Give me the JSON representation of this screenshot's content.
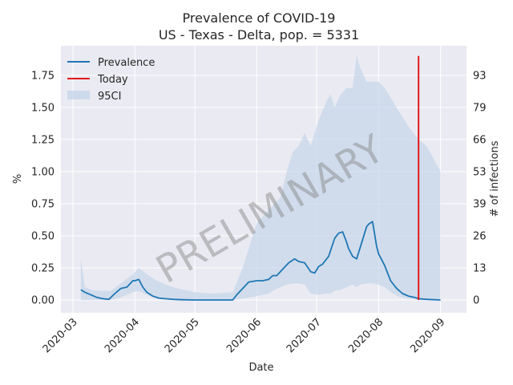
{
  "chart_data": {
    "type": "line",
    "title": "Prevalence of COVID-19",
    "subtitle": "US - Texas - Delta, pop. = 5331",
    "xlabel": "Date",
    "ylabel": "%",
    "y2label": "# of infections",
    "watermark": "PRELIMINARY",
    "xlim": [
      "2020-02-24",
      "2020-09-14"
    ],
    "ylim": [
      -0.1,
      1.98
    ],
    "x_ticks": [
      "2020-03-01",
      "2020-04-01",
      "2020-05-01",
      "2020-06-01",
      "2020-07-01",
      "2020-08-01",
      "2020-09-01"
    ],
    "x_tick_labels": [
      "2020-03",
      "2020-04",
      "2020-05",
      "2020-06",
      "2020-07",
      "2020-08",
      "2020-09"
    ],
    "y_ticks": [
      0.0,
      0.25,
      0.5,
      0.75,
      1.0,
      1.25,
      1.5,
      1.75
    ],
    "y_tick_labels": [
      "0.00",
      "0.25",
      "0.50",
      "0.75",
      "1.00",
      "1.25",
      "1.50",
      "1.75"
    ],
    "y2_ticks": [
      0,
      13,
      26,
      39,
      53,
      66,
      79,
      93
    ],
    "grid": true,
    "legend_position": "top-left",
    "legend": [
      "Prevalence",
      "Today",
      "95CI"
    ],
    "colors": {
      "prevalence": "#1f77b4",
      "today": "#e31a1c",
      "ci": "#c5d6ea",
      "background": "#eaeaf2",
      "grid": "#ffffff"
    },
    "today": "2020-08-21",
    "today_range": [
      0.0,
      1.9
    ],
    "series": [
      {
        "name": "Prevalence",
        "x": [
          "2020-03-05",
          "2020-03-07",
          "2020-03-10",
          "2020-03-13",
          "2020-03-16",
          "2020-03-19",
          "2020-03-22",
          "2020-03-25",
          "2020-03-28",
          "2020-03-31",
          "2020-04-01",
          "2020-04-03",
          "2020-04-05",
          "2020-04-07",
          "2020-04-10",
          "2020-04-13",
          "2020-04-16",
          "2020-04-20",
          "2020-04-25",
          "2020-05-01",
          "2020-05-10",
          "2020-05-20",
          "2020-05-22",
          "2020-05-25",
          "2020-05-28",
          "2020-06-01",
          "2020-06-04",
          "2020-06-07",
          "2020-06-09",
          "2020-06-11",
          "2020-06-14",
          "2020-06-17",
          "2020-06-20",
          "2020-06-22",
          "2020-06-25",
          "2020-06-28",
          "2020-06-30",
          "2020-07-02",
          "2020-07-04",
          "2020-07-07",
          "2020-07-10",
          "2020-07-12",
          "2020-07-14",
          "2020-07-16",
          "2020-07-17",
          "2020-07-19",
          "2020-07-21",
          "2020-07-23",
          "2020-07-25",
          "2020-07-26",
          "2020-07-27",
          "2020-07-29",
          "2020-07-31",
          "2020-08-01",
          "2020-08-02",
          "2020-08-04",
          "2020-08-07",
          "2020-08-10",
          "2020-08-13",
          "2020-08-16",
          "2020-08-19",
          "2020-08-21",
          "2020-08-25",
          "2020-09-01"
        ],
        "values": [
          0.08,
          0.06,
          0.04,
          0.02,
          0.01,
          0.005,
          0.05,
          0.09,
          0.1,
          0.15,
          0.15,
          0.16,
          0.1,
          0.06,
          0.03,
          0.015,
          0.01,
          0.005,
          0.002,
          0.0,
          0.0,
          0.0,
          0.04,
          0.09,
          0.14,
          0.15,
          0.15,
          0.16,
          0.19,
          0.19,
          0.24,
          0.29,
          0.32,
          0.3,
          0.29,
          0.22,
          0.21,
          0.26,
          0.28,
          0.34,
          0.48,
          0.52,
          0.53,
          0.45,
          0.4,
          0.34,
          0.32,
          0.42,
          0.52,
          0.57,
          0.59,
          0.61,
          0.42,
          0.36,
          0.33,
          0.27,
          0.15,
          0.09,
          0.05,
          0.03,
          0.02,
          0.01,
          0.005,
          0.0
        ]
      },
      {
        "name": "95CI",
        "x": [
          "2020-03-05",
          "2020-03-07",
          "2020-03-10",
          "2020-03-15",
          "2020-03-20",
          "2020-03-25",
          "2020-03-31",
          "2020-04-03",
          "2020-04-07",
          "2020-04-12",
          "2020-04-20",
          "2020-05-01",
          "2020-05-10",
          "2020-05-20",
          "2020-05-25",
          "2020-06-01",
          "2020-06-07",
          "2020-06-10",
          "2020-06-13",
          "2020-06-16",
          "2020-06-19",
          "2020-06-22",
          "2020-06-25",
          "2020-06-28",
          "2020-07-02",
          "2020-07-06",
          "2020-07-08",
          "2020-07-10",
          "2020-07-13",
          "2020-07-16",
          "2020-07-19",
          "2020-07-21",
          "2020-07-23",
          "2020-07-26",
          "2020-07-29",
          "2020-08-01",
          "2020-08-04",
          "2020-08-08",
          "2020-08-12",
          "2020-08-16",
          "2020-08-21",
          "2020-08-25",
          "2020-09-01"
        ],
        "upper": [
          0.32,
          0.1,
          0.08,
          0.07,
          0.07,
          0.13,
          0.2,
          0.25,
          0.2,
          0.15,
          0.1,
          0.06,
          0.05,
          0.06,
          0.25,
          0.6,
          0.7,
          0.75,
          0.8,
          1.0,
          1.15,
          1.2,
          1.3,
          1.2,
          1.4,
          1.55,
          1.6,
          1.5,
          1.6,
          1.65,
          1.65,
          1.9,
          1.8,
          1.7,
          1.7,
          1.7,
          1.65,
          1.55,
          1.45,
          1.35,
          1.25,
          1.2,
          1.0
        ],
        "lower": [
          0.0,
          0.0,
          0.0,
          0.0,
          0.0,
          0.02,
          0.06,
          0.07,
          0.04,
          0.01,
          0.0,
          0.0,
          0.0,
          0.0,
          0.01,
          0.03,
          0.05,
          0.08,
          0.1,
          0.12,
          0.13,
          0.13,
          0.12,
          0.05,
          0.04,
          0.05,
          0.05,
          0.07,
          0.08,
          0.1,
          0.12,
          0.1,
          0.12,
          0.13,
          0.13,
          0.12,
          0.1,
          0.05,
          0.02,
          0.01,
          0.0,
          0.0,
          0.0
        ]
      }
    ]
  }
}
